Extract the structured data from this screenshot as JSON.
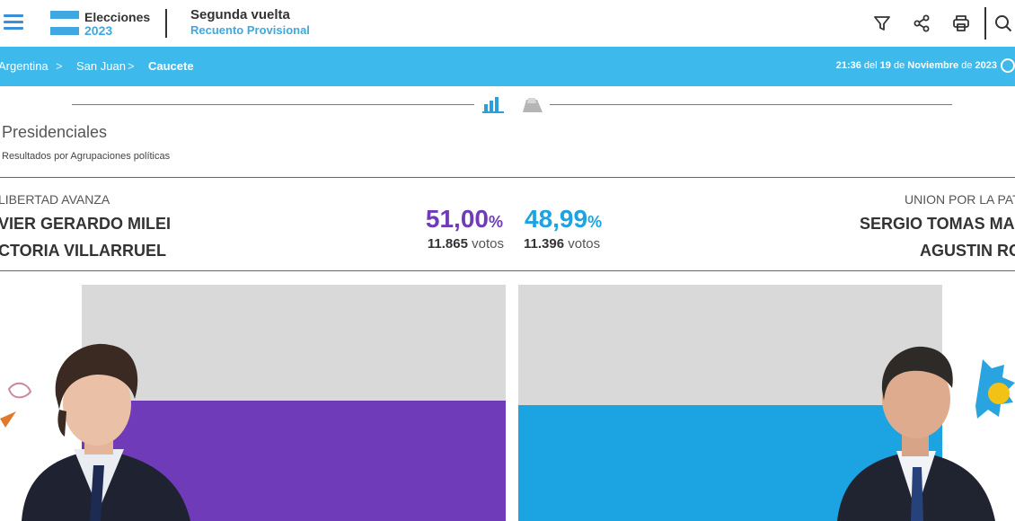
{
  "header": {
    "brand_title": "Elecciones",
    "brand_year": "2023",
    "round_title": "Segunda vuelta",
    "round_subtitle": "Recuento Provisional",
    "icons": [
      "menu-icon",
      "filter-icon",
      "share-icon",
      "print-icon",
      "search-icon"
    ]
  },
  "breadcrumb": {
    "items": [
      "Argentina",
      "San Juan",
      "Caucete"
    ],
    "separator": ">",
    "time": "21:36",
    "del": "del",
    "day": "19",
    "de1": "de",
    "month": "Noviembre",
    "de2": "de",
    "year": "2023"
  },
  "section": {
    "title": "Presidenciales",
    "subtitle": "Resultados por Agrupaciones políticas"
  },
  "results": [
    {
      "party": "LIBERTAD AVANZA",
      "candidate_1": "VIER GERARDO MILEI",
      "candidate_2": "CTORIA VILLARRUEL",
      "percent": "51,00",
      "percent_sign": "%",
      "votes": "11.865",
      "votes_label": "votos",
      "share": 51.0,
      "color": "#6f3bb8"
    },
    {
      "party": "UNION POR LA PAT",
      "candidate_1": "SERGIO TOMAS MAS",
      "candidate_2": "AGUSTIN RO",
      "percent": "48,99",
      "percent_sign": "%",
      "votes": "11.396",
      "votes_label": "votos",
      "share": 48.99,
      "color": "#1ca3e2"
    }
  ],
  "colors": {
    "accent_blue": "#3db9ec",
    "flag_blue": "#3fa8e0",
    "bar_background": "#d9d9d9"
  }
}
